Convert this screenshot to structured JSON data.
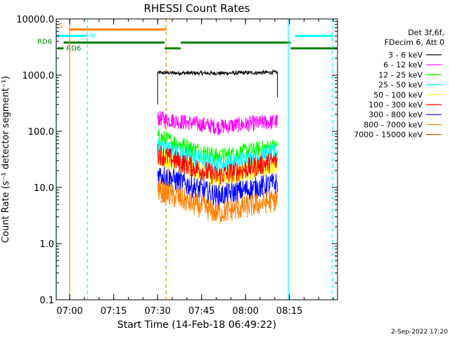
{
  "chart_data": {
    "type": "line",
    "title": "RHESSI Count Rates",
    "xlabel": "Start Time (14-Feb-18 06:49:22)",
    "ylabel": "Count Rate (s⁻¹ detector segment⁻¹)",
    "ylog": true,
    "ylim": [
      0.1,
      10000
    ],
    "xlim_minutes": [
      6.0,
      102.0
    ],
    "x_ticks": [
      {
        "label": "07:00",
        "min": 10.6
      },
      {
        "label": "07:15",
        "min": 25.6
      },
      {
        "label": "07:30",
        "min": 40.6
      },
      {
        "label": "07:45",
        "min": 55.6
      },
      {
        "label": "08:00",
        "min": 70.6
      },
      {
        "label": "08:15",
        "min": 85.6
      }
    ],
    "y_ticks": [
      {
        "label": "0.1",
        "value": 0.1
      },
      {
        "label": "1.0",
        "value": 1
      },
      {
        "label": "10.0",
        "value": 10
      },
      {
        "label": "100.0",
        "value": 100
      },
      {
        "label": "1000.0",
        "value": 1000
      },
      {
        "label": "10000.0",
        "value": 10000
      }
    ],
    "legend_header": [
      "Det 3f,6f,",
      "FDecim 6, Att 0"
    ],
    "legend_placement": "right",
    "data_window_minutes": [
      40.6,
      81.5
    ],
    "series": [
      {
        "name": "3 - 6 keV",
        "color": "#000000",
        "start": 1100,
        "mid": 1080,
        "end": 1120
      },
      {
        "name": "6 - 12 keV",
        "color": "#ff00ff",
        "start": 170,
        "mid": 120,
        "end": 150
      },
      {
        "name": "12 - 25 keV",
        "color": "#00ff00",
        "start": 80,
        "mid": 35,
        "end": 55
      },
      {
        "name": "25 - 50 keV",
        "color": "#00ffff",
        "start": 55,
        "mid": 25,
        "end": 42
      },
      {
        "name": "50 - 100 keV",
        "color": "#ffff00",
        "start": 35,
        "mid": 14,
        "end": 26
      },
      {
        "name": "100 - 300 keV",
        "color": "#ff0000",
        "start": 40,
        "mid": 16,
        "end": 30
      },
      {
        "name": "300 - 800 keV",
        "color": "#0000ff",
        "start": 18,
        "mid": 7,
        "end": 12
      },
      {
        "name": "800 - 7000 keV",
        "color": "#ff8000",
        "start": 9,
        "mid": 3.5,
        "end": 6
      },
      {
        "name": "7000 - 15000 keV",
        "color": "#996600",
        "start": null,
        "mid": null,
        "end": null
      }
    ],
    "flag_bars": [
      {
        "label": "S",
        "color": "#ff8000",
        "level": 6500,
        "segments": [
          [
            10.6,
            43.5
          ]
        ]
      },
      {
        "label": "N",
        "color": "#00ffff",
        "level": 5000,
        "segments": [
          [
            6.0,
            16.6
          ],
          [
            87.5,
            100.5
          ]
        ]
      },
      {
        "label": "RD6",
        "color": "#008000",
        "level": 3800,
        "segments": [
          [
            8.5,
            43.0
          ],
          [
            48.5,
            86.0
          ]
        ]
      },
      {
        "label": "RD6",
        "color": "#008000",
        "level": 3000,
        "segments": [
          [
            6.5,
            8.5
          ],
          [
            43.0,
            48.5
          ],
          [
            86.0,
            102.0
          ]
        ]
      }
    ],
    "vlines": [
      {
        "min": 6.0,
        "color": "#00ffff",
        "style": "solid"
      },
      {
        "min": 10.6,
        "color": "#ff8000",
        "style": "solid"
      },
      {
        "min": 16.6,
        "color": "#00ffff",
        "style": "dashed"
      },
      {
        "min": 43.5,
        "color": "#ff8000",
        "style": "dashed"
      },
      {
        "min": 85.2,
        "color": "#00ffff",
        "style": "solid"
      },
      {
        "min": 100.2,
        "color": "#00ffff",
        "style": "dashed"
      }
    ]
  },
  "footer": {
    "timestamp": "2-Sep-2022 17:20"
  }
}
